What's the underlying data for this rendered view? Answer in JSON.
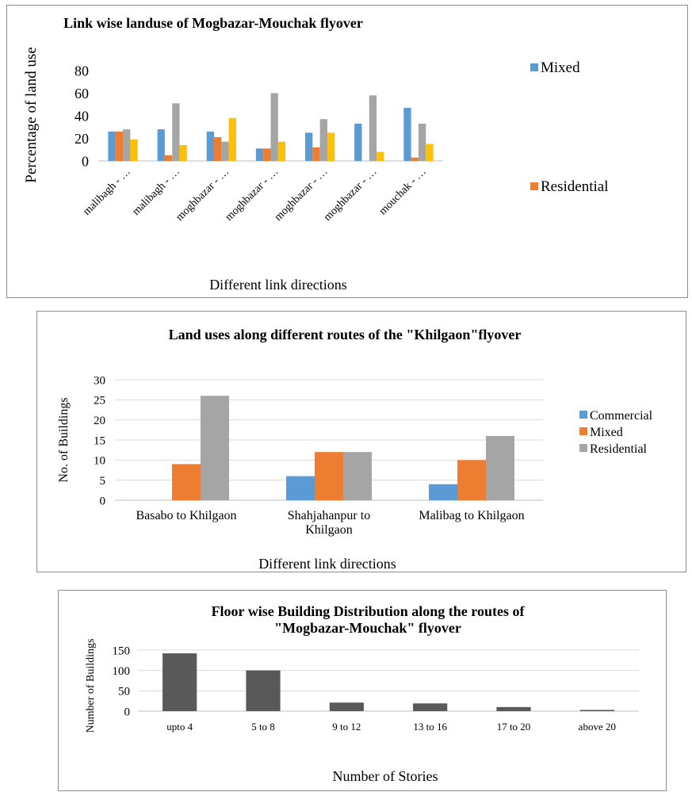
{
  "chart_data": [
    {
      "type": "bar",
      "title": "Link wise landuse of Mogbazar-Mouchak flyover",
      "xlabel": "Different link directions",
      "ylabel": "Percentage of land use",
      "ylim": [
        0,
        80
      ],
      "yticks": [
        0,
        20,
        40,
        60,
        80
      ],
      "grid": false,
      "legend_position": "right",
      "categories": [
        "malibagh - …",
        "malibagh - …",
        "moghbazar - …",
        "moghbazar - …",
        "moghbazar - …",
        "moghbazar - …",
        "mouchak - …"
      ],
      "series": [
        {
          "name": "Mixed",
          "color": "#5b9bd5",
          "values": [
            26,
            28,
            26,
            11,
            25,
            33,
            47
          ]
        },
        {
          "name": "Residential",
          "color": "#ed7d31",
          "values": [
            26,
            5,
            21,
            11,
            12,
            0,
            3
          ]
        },
        {
          "name": "",
          "color": "#a5a5a5",
          "values": [
            28,
            51,
            17,
            60,
            37,
            58,
            33
          ]
        },
        {
          "name": "",
          "color": "#ffc000",
          "values": [
            19,
            14,
            38,
            17,
            25,
            8,
            15
          ]
        }
      ]
    },
    {
      "type": "bar",
      "title": "Land uses along different routes of the \"Khilgaon\"flyover",
      "xlabel": "Different link directions",
      "ylabel": "No. of Buildings",
      "ylim": [
        0,
        30
      ],
      "yticks": [
        0,
        5,
        10,
        15,
        20,
        25,
        30
      ],
      "grid": true,
      "legend_position": "right",
      "categories": [
        [
          "Basabo to Khilgaon"
        ],
        [
          "Shahjahanpur to",
          "Khilgaon"
        ],
        [
          "Malibag to Khilgaon"
        ]
      ],
      "series": [
        {
          "name": "Commercial",
          "color": "#5b9bd5",
          "values": [
            0,
            6,
            4
          ]
        },
        {
          "name": "Mixed",
          "color": "#ed7d31",
          "values": [
            9,
            12,
            10
          ]
        },
        {
          "name": "Residential",
          "color": "#a5a5a5",
          "values": [
            26,
            12,
            16
          ]
        }
      ]
    },
    {
      "type": "bar",
      "title": [
        "Floor wise Building Distribution along the routes of",
        "\"Mogbazar-Mouchak\" flyover"
      ],
      "xlabel": "Number of Stories",
      "ylabel": "Number of Buildings",
      "ylim": [
        0,
        150
      ],
      "yticks": [
        0,
        50,
        100,
        150
      ],
      "grid": true,
      "legend_position": "none",
      "categories": [
        "upto 4",
        "5 to 8",
        "9 to 12",
        "13 to 16",
        "17 to 20",
        "above 20"
      ],
      "series": [
        {
          "name": "",
          "color": "#595959",
          "values": [
            142,
            100,
            21,
            19,
            10,
            3
          ]
        }
      ]
    }
  ]
}
